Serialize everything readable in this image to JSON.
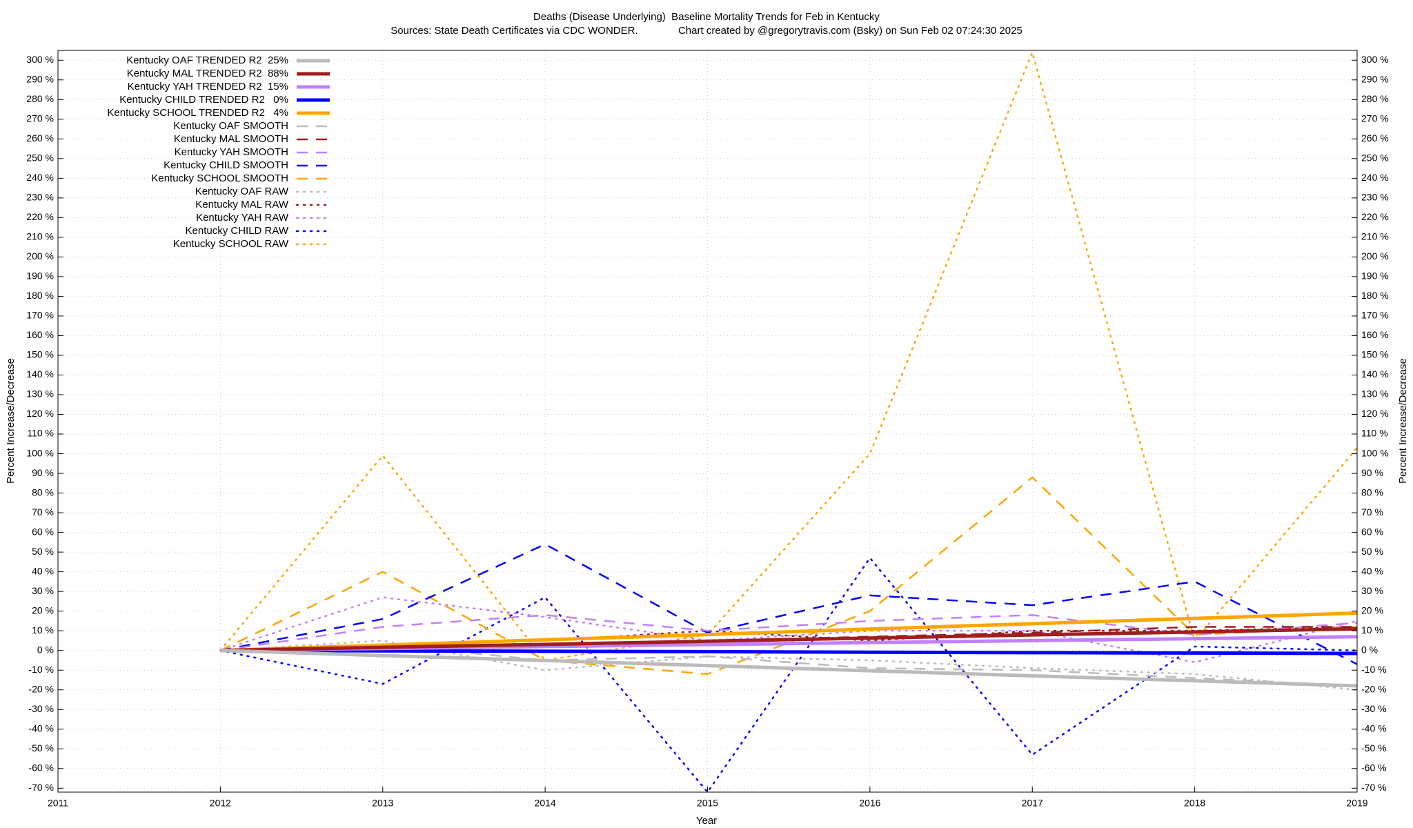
{
  "chart_data": {
    "type": "line",
    "title": "Deaths (Disease Underlying)  Baseline Mortality Trends for Feb in Kentucky",
    "subtitle": "Sources: State Death Certificates via CDC WONDER.              Chart created by @gregorytravis.com (Bsky) on Sun Feb 02 07:24:30 2025",
    "xlabel": "Year",
    "ylabel": "Percent Increase/Decrease",
    "y2label": "Percent Increase/Decrease",
    "x": [
      2012,
      2013,
      2014,
      2015,
      2016,
      2017,
      2018,
      2019
    ],
    "xlim": [
      2011,
      2019
    ],
    "xticks": [
      2011,
      2012,
      2013,
      2014,
      2015,
      2016,
      2017,
      2018,
      2019
    ],
    "ylim": [
      -72,
      305
    ],
    "y2lim": [
      -72,
      305
    ],
    "grid": true,
    "legend": "top-left",
    "yticks": [
      {
        "value": -70,
        "label": "-70 %"
      },
      {
        "value": -60,
        "label": "-60 %"
      },
      {
        "value": -50,
        "label": "-50 %"
      },
      {
        "value": -40,
        "label": "-40 %"
      },
      {
        "value": -30,
        "label": "-30 %"
      },
      {
        "value": -20,
        "label": "-20 %"
      },
      {
        "value": -10,
        "label": "-10 %"
      },
      {
        "value": 0,
        "label": "0 %"
      },
      {
        "value": 10,
        "label": "10 %"
      },
      {
        "value": 20,
        "label": "20 %"
      },
      {
        "value": 30,
        "label": "30 %"
      },
      {
        "value": 40,
        "label": "40 %"
      },
      {
        "value": 50,
        "label": "50 %"
      },
      {
        "value": 60,
        "label": "60 %"
      },
      {
        "value": 70,
        "label": "70 %"
      },
      {
        "value": 80,
        "label": "80 %"
      },
      {
        "value": 90,
        "label": "90 %"
      },
      {
        "value": 100,
        "label": "100 %"
      },
      {
        "value": 110,
        "label": "110 %"
      },
      {
        "value": 120,
        "label": "120 %"
      },
      {
        "value": 130,
        "label": "130 %"
      },
      {
        "value": 140,
        "label": "140 %"
      },
      {
        "value": 150,
        "label": "150 %"
      },
      {
        "value": 160,
        "label": "160 %"
      },
      {
        "value": 170,
        "label": "170 %"
      },
      {
        "value": 180,
        "label": "180 %"
      },
      {
        "value": 190,
        "label": "190 %"
      },
      {
        "value": 200,
        "label": "200 %"
      },
      {
        "value": 210,
        "label": "210 %"
      },
      {
        "value": 220,
        "label": "220 %"
      },
      {
        "value": 230,
        "label": "230 %"
      },
      {
        "value": 240,
        "label": "240 %"
      },
      {
        "value": 250,
        "label": "250 %"
      },
      {
        "value": 260,
        "label": "260 %"
      },
      {
        "value": 270,
        "label": "270 %"
      },
      {
        "value": 280,
        "label": "280 %"
      },
      {
        "value": 290,
        "label": "290 %"
      },
      {
        "value": 300,
        "label": "300 %"
      }
    ],
    "y2ticks": [
      {
        "value": -70,
        "label": "-70 %"
      },
      {
        "value": -60,
        "label": "-60 %"
      },
      {
        "value": -50,
        "label": "-50 %"
      },
      {
        "value": -40,
        "label": "-40 %"
      },
      {
        "value": -30,
        "label": "-30 %"
      },
      {
        "value": -20,
        "label": "-20 %"
      },
      {
        "value": -10,
        "label": "-10 %"
      },
      {
        "value": 0,
        "label": "0 %"
      },
      {
        "value": 10,
        "label": "10 %"
      },
      {
        "value": 20,
        "label": "20 %"
      },
      {
        "value": 30,
        "label": "30 %"
      },
      {
        "value": 40,
        "label": "40 %"
      },
      {
        "value": 50,
        "label": "50 %"
      },
      {
        "value": 60,
        "label": "60 %"
      },
      {
        "value": 70,
        "label": "70 %"
      },
      {
        "value": 80,
        "label": "80 %"
      },
      {
        "value": 90,
        "label": "90 %"
      },
      {
        "value": 100,
        "label": "100 %"
      },
      {
        "value": 110,
        "label": "110 %"
      },
      {
        "value": 120,
        "label": "120 %"
      },
      {
        "value": 130,
        "label": "130 %"
      },
      {
        "value": 140,
        "label": "140 %"
      },
      {
        "value": 150,
        "label": "150 %"
      },
      {
        "value": 160,
        "label": "160 %"
      },
      {
        "value": 170,
        "label": "170 %"
      },
      {
        "value": 180,
        "label": "180 %"
      },
      {
        "value": 190,
        "label": "190 %"
      },
      {
        "value": 200,
        "label": "200 %"
      },
      {
        "value": 210,
        "label": "210 %"
      },
      {
        "value": 220,
        "label": "220 %"
      },
      {
        "value": 230,
        "label": "230 %"
      },
      {
        "value": 240,
        "label": "240 %"
      },
      {
        "value": 250,
        "label": "250 %"
      },
      {
        "value": 260,
        "label": "260 %"
      },
      {
        "value": 270,
        "label": "270 %"
      },
      {
        "value": 280,
        "label": "280 %"
      },
      {
        "value": 290,
        "label": "290 %"
      },
      {
        "value": 300,
        "label": "300 %"
      }
    ],
    "series": [
      {
        "name": "Kentucky OAF TRENDED R2  25%",
        "color": "#bbbbbb",
        "style": "solid",
        "values": [
          0,
          -2.6,
          -5.1,
          -7.7,
          -10.3,
          -12.9,
          -15.4,
          -18
        ]
      },
      {
        "name": "Kentucky MAL TRENDED R2  88%",
        "color": "#a01e1e",
        "style": "solid",
        "values": [
          0,
          1.6,
          3.1,
          4.7,
          6.3,
          7.9,
          9.4,
          11
        ]
      },
      {
        "name": "Kentucky YAH TRENDED R2  15%",
        "color": "#c080ff",
        "style": "solid",
        "values": [
          0,
          1,
          2,
          3,
          4,
          5,
          6,
          7
        ]
      },
      {
        "name": "Kentucky CHILD TRENDED R2   0%",
        "color": "#0000ff",
        "style": "solid",
        "values": [
          0,
          -0.2,
          -0.4,
          -0.6,
          -0.9,
          -1.1,
          -1.3,
          -1.5
        ]
      },
      {
        "name": "Kentucky SCHOOL TRENDED R2   4%",
        "color": "#ffa500",
        "style": "solid",
        "values": [
          0,
          2.7,
          5.4,
          8.1,
          10.9,
          13.6,
          16.3,
          19
        ]
      },
      {
        "name": "Kentucky OAF SMOOTH",
        "color": "#bbbbbb",
        "style": "dashed",
        "values": [
          0,
          3,
          -5,
          -3,
          -9,
          -10,
          -14,
          -18
        ]
      },
      {
        "name": "Kentucky MAL SMOOTH",
        "color": "#a01e1e",
        "style": "dashed",
        "values": [
          0,
          2,
          3,
          5,
          7,
          9,
          12,
          12
        ]
      },
      {
        "name": "Kentucky YAH SMOOTH",
        "color": "#c080ff",
        "style": "dashed",
        "values": [
          0,
          12,
          18,
          10,
          15,
          18,
          8,
          14
        ]
      },
      {
        "name": "Kentucky CHILD SMOOTH",
        "color": "#0000ff",
        "style": "dashed",
        "values": [
          0,
          16,
          54,
          9,
          28,
          23,
          35,
          -7
        ]
      },
      {
        "name": "Kentucky SCHOOL SMOOTH",
        "color": "#ffa500",
        "style": "dashed",
        "values": [
          0,
          40,
          -5,
          -12,
          20,
          88,
          8,
          12
        ]
      },
      {
        "name": "Kentucky OAF RAW",
        "color": "#bbbbbb",
        "style": "dotted",
        "values": [
          0,
          5,
          -10,
          -3,
          -5,
          -9,
          -12,
          -20
        ]
      },
      {
        "name": "Kentucky MAL RAW",
        "color": "#a01e1e",
        "style": "dotted",
        "values": [
          0,
          3,
          5,
          10,
          5,
          10,
          10,
          12
        ]
      },
      {
        "name": "Kentucky YAH RAW",
        "color": "#c080ff",
        "style": "dotted",
        "values": [
          0,
          27,
          17,
          5,
          10,
          10,
          -6,
          15
        ]
      },
      {
        "name": "Kentucky CHILD RAW",
        "color": "#0000ff",
        "style": "dotted",
        "values": [
          0,
          -17,
          27,
          -72,
          47,
          -53,
          2,
          0
        ]
      },
      {
        "name": "Kentucky SCHOOL RAW",
        "color": "#ffa500",
        "style": "dotted",
        "values": [
          0,
          99,
          -5,
          8,
          100,
          304,
          5,
          103
        ]
      }
    ]
  }
}
